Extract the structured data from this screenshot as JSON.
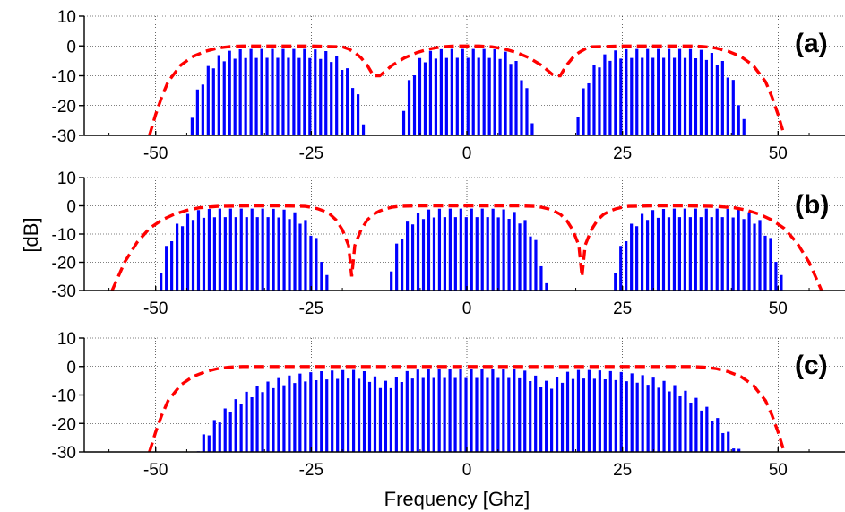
{
  "chart_data": {
    "type": "line",
    "x_axis_label": "Frequency [Ghz]",
    "y_axis_label": "[dB]",
    "xlim": [
      -60,
      60
    ],
    "ylim": [
      -30,
      10
    ],
    "xticks": [
      -50,
      -25,
      0,
      25,
      50
    ],
    "yticks": [
      10,
      0,
      -10,
      -20,
      -30
    ],
    "grid": true,
    "colors": {
      "spectrum": "#0000ff",
      "envelope": "#ff0000"
    },
    "panels": [
      {
        "label": "(a)",
        "spectrum_bands": [
          {
            "x_start": -45,
            "x_end": -16,
            "peak_db": -1
          },
          {
            "x_start": -11,
            "x_end": 11,
            "peak_db": -1
          },
          {
            "x_start": 17,
            "x_end": 45,
            "peak_db": -1
          }
        ],
        "envelope": {
          "x": [
            -51,
            -50,
            -49,
            -48,
            -46,
            -44,
            -42,
            -40,
            -38,
            -36,
            -30,
            -25,
            -20,
            -19,
            -18,
            -17,
            -16,
            -15,
            -14,
            -12,
            -10,
            -8,
            -6,
            -4,
            -2,
            0,
            2,
            4,
            6,
            8,
            10,
            12,
            14,
            15,
            16,
            17,
            18,
            19,
            20,
            25,
            30,
            36,
            38,
            40,
            42,
            44,
            46,
            48,
            49,
            50,
            51
          ],
          "y": [
            -30,
            -23,
            -17,
            -12,
            -6.5,
            -3.5,
            -1.8,
            -0.7,
            -0.2,
            0,
            0,
            0,
            -0.3,
            -1,
            -2.2,
            -4,
            -6.5,
            -10,
            -10,
            -6.5,
            -4,
            -2.2,
            -1,
            -0.3,
            0,
            0,
            0,
            -0.3,
            -1,
            -2.2,
            -4,
            -6.5,
            -10,
            -10,
            -6.5,
            -4,
            -2.2,
            -1,
            -0.3,
            0,
            0,
            0,
            -0.2,
            -0.7,
            -1.8,
            -3.5,
            -6.5,
            -12,
            -17,
            -23,
            -30
          ]
        }
      },
      {
        "label": "(b)",
        "spectrum_bands": [
          {
            "x_start": -50,
            "x_end": -22,
            "peak_db": -1
          },
          {
            "x_start": -13,
            "x_end": 13,
            "peak_db": -1
          },
          {
            "x_start": 23,
            "x_end": 51,
            "peak_db": -1
          }
        ],
        "envelope": {
          "x": [
            -57,
            -55,
            -53,
            -51,
            -49,
            -47,
            -45,
            -43,
            -40,
            -35,
            -30,
            -26,
            -25,
            -24,
            -23,
            -22,
            -21,
            -20,
            -19,
            -18.5,
            -18,
            -17,
            -16,
            -15,
            -14,
            -13,
            -12,
            -11,
            -8,
            -4,
            0,
            4,
            8,
            11,
            12,
            13,
            14,
            15,
            16,
            17,
            18,
            18.5,
            19,
            20,
            21,
            22,
            23,
            24,
            25,
            26,
            30,
            35,
            40,
            43,
            45,
            47,
            49,
            51,
            53,
            55,
            57
          ],
          "y": [
            -30,
            -20,
            -13,
            -8,
            -5,
            -3,
            -1.6,
            -0.7,
            -0.2,
            0,
            0,
            -0.2,
            -0.5,
            -1,
            -1.8,
            -3,
            -5,
            -8.5,
            -14,
            -25,
            -14,
            -8.5,
            -5,
            -3,
            -1.8,
            -1,
            -0.5,
            -0.2,
            0,
            0,
            0,
            0,
            0,
            -0.2,
            -0.5,
            -1,
            -1.8,
            -3,
            -5,
            -8.5,
            -14,
            -25,
            -14,
            -8.5,
            -5,
            -3,
            -1.8,
            -1,
            -0.5,
            -0.2,
            0,
            0,
            -0.2,
            -0.7,
            -1.6,
            -3,
            -5,
            -8,
            -13,
            -20,
            -30
          ]
        }
      },
      {
        "label": "(c)",
        "spectrum_bands": [
          {
            "x_start": -44,
            "x_end": 44,
            "peak_db": -1,
            "dips_at": [
              -13,
              13
            ]
          }
        ],
        "envelope": {
          "x": [
            -51,
            -50,
            -49,
            -48,
            -46,
            -44,
            -42,
            -40,
            -38,
            -36,
            -20,
            0,
            20,
            36,
            38,
            40,
            42,
            44,
            46,
            48,
            49,
            50,
            51
          ],
          "y": [
            -30,
            -23,
            -17,
            -12,
            -6.5,
            -3.5,
            -1.8,
            -0.7,
            -0.2,
            0,
            0,
            0,
            0,
            0,
            -0.2,
            -0.7,
            -1.8,
            -3.5,
            -6.5,
            -12,
            -17,
            -23,
            -30
          ]
        }
      }
    ]
  }
}
